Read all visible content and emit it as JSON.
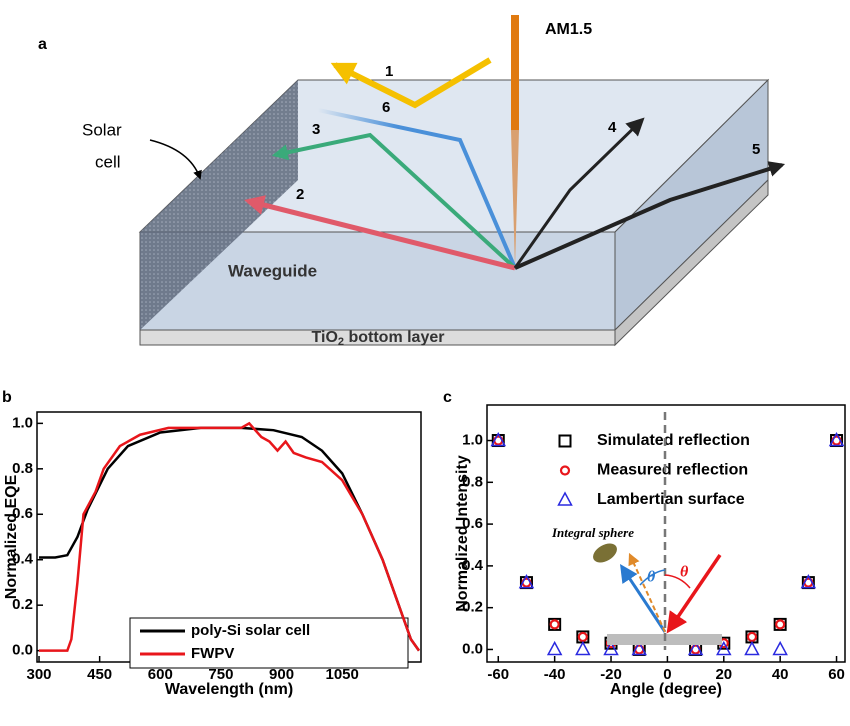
{
  "diagram": {
    "panel_label": "a",
    "source": "AM1.5",
    "rays": [
      "1",
      "2",
      "3",
      "4",
      "5",
      "6"
    ],
    "solar_cell": [
      "Solar",
      "cell"
    ],
    "waveguide": "Waveguide",
    "bottom_layer": {
      "text": "TiO",
      "subscript": "2",
      "rest": " bottom layer"
    }
  },
  "chart_data": [
    {
      "type": "line",
      "label": "b",
      "xlabel": "Wavelength (nm)",
      "ylabel": "Normalized EQE",
      "xlim": [
        295,
        1245
      ],
      "xticks": [
        300,
        450,
        600,
        750,
        900,
        1050
      ],
      "ylim": [
        -0.05,
        1.05
      ],
      "yticks": [
        {
          "value": 0,
          "label": "0.0"
        },
        {
          "value": 0.2,
          "label": "0.2"
        },
        {
          "value": 0.4,
          "label": "0.4"
        },
        {
          "value": 0.6,
          "label": "0.6"
        },
        {
          "value": 0.8,
          "label": "0.8"
        },
        {
          "value": 1.0,
          "label": "1.0"
        }
      ],
      "legend": "lower-center",
      "series": [
        {
          "name": "poly-Si solar cell",
          "color": "#000000",
          "x": [
            300,
            340,
            370,
            395,
            420,
            470,
            520,
            600,
            700,
            800,
            880,
            950,
            1000,
            1050,
            1100,
            1150,
            1190,
            1220,
            1240
          ],
          "values": [
            0.41,
            0.41,
            0.42,
            0.5,
            0.62,
            0.8,
            0.9,
            0.96,
            0.98,
            0.98,
            0.97,
            0.94,
            0.88,
            0.78,
            0.6,
            0.4,
            0.2,
            0.05,
            0
          ]
        },
        {
          "name": "FWPV",
          "color": "#e8161b",
          "x": [
            300,
            370,
            380,
            395,
            410,
            440,
            460,
            500,
            550,
            620,
            750,
            800,
            820,
            850,
            870,
            890,
            910,
            930,
            960,
            1000,
            1050,
            1100,
            1150,
            1190,
            1220,
            1240
          ],
          "values": [
            0,
            0,
            0.05,
            0.3,
            0.6,
            0.7,
            0.8,
            0.9,
            0.95,
            0.98,
            0.98,
            0.98,
            1.0,
            0.94,
            0.92,
            0.88,
            0.92,
            0.87,
            0.85,
            0.83,
            0.75,
            0.6,
            0.4,
            0.2,
            0.05,
            0
          ]
        }
      ]
    },
    {
      "type": "scatter",
      "label": "c",
      "xlabel": "Angle (degree)",
      "ylabel": "Normalized Intensity",
      "xlim": [
        -64,
        63
      ],
      "xticks": [
        -60,
        -40,
        -20,
        0,
        20,
        40,
        60
      ],
      "ylim": [
        -0.06,
        1.17
      ],
      "yticks": [
        {
          "value": 0,
          "label": "0.0"
        },
        {
          "value": 0.2,
          "label": "0.2"
        },
        {
          "value": 0.4,
          "label": "0.4"
        },
        {
          "value": 0.6,
          "label": "0.6"
        },
        {
          "value": 0.8,
          "label": "0.8"
        },
        {
          "value": 1.0,
          "label": "1.0"
        }
      ],
      "legend": "upper-center",
      "annotations": [
        "Integral sphere",
        "θ",
        "θ"
      ],
      "x": [
        -60,
        -50,
        -40,
        -30,
        -20,
        -10,
        10,
        20,
        30,
        40,
        50,
        60
      ],
      "series": [
        {
          "name": "Simulated reflection",
          "color": "#000000",
          "marker": "square",
          "values": [
            1.0,
            0.32,
            0.12,
            0.06,
            0.03,
            0.0,
            0.0,
            0.03,
            0.06,
            0.12,
            0.32,
            1.0
          ]
        },
        {
          "name": "Measured reflection",
          "color": "#e8161b",
          "marker": "circle",
          "values": [
            1.0,
            0.32,
            0.12,
            0.06,
            0.03,
            0.0,
            0.0,
            0.03,
            0.06,
            0.12,
            0.32,
            1.0
          ]
        },
        {
          "name": "Lambertian surface",
          "color": "#2a2ae0",
          "marker": "triangle",
          "values": [
            1.0,
            0.32,
            0.0,
            0.0,
            0.0,
            0.0,
            0.0,
            0.0,
            0.0,
            0.0,
            0.32,
            1.0
          ]
        }
      ]
    }
  ]
}
